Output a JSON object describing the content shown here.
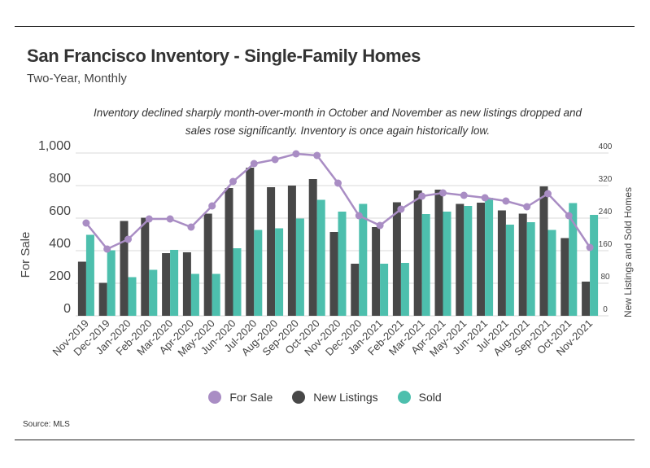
{
  "header": {
    "title": "San Francisco Inventory - Single-Family Homes",
    "subtitle": "Two-Year, Monthly"
  },
  "annotation": "Inventory declined sharply month-over-month in October and November as new listings dropped and sales rose significantly. Inventory is once again historically low.",
  "source": "Source:  MLS",
  "colors": {
    "for_sale": "#a98dc4",
    "new_listings": "#484848",
    "sold": "#4dbfad",
    "grid": "#d9d9d9"
  },
  "chart_data": {
    "type": "bar",
    "categories": [
      "Nov-2019",
      "Dec-2019",
      "Jan-2020",
      "Feb-2020",
      "Mar-2020",
      "Apr-2020",
      "May-2020",
      "Jun-2020",
      "Jul-2020",
      "Aug-2020",
      "Sep-2020",
      "Oct-2020",
      "Nov-2020",
      "Dec-2020",
      "Jan-2021",
      "Feb-2021",
      "Mar-2021",
      "Apr-2021",
      "May-2021",
      "Jun-2021",
      "Jul-2021",
      "Aug-2021",
      "Sep-2021",
      "Oct-2021",
      "Nov-2021"
    ],
    "series": [
      {
        "name": "For Sale",
        "type": "line",
        "axis": "left",
        "values": [
          570,
          410,
          470,
          595,
          595,
          545,
          675,
          825,
          935,
          960,
          995,
          985,
          815,
          615,
          555,
          655,
          735,
          755,
          740,
          725,
          705,
          670,
          750,
          615,
          420
        ]
      },
      {
        "name": "New Listings",
        "type": "bar",
        "axis": "right",
        "values": [
          133,
          81,
          233,
          241,
          154,
          156,
          251,
          314,
          364,
          316,
          320,
          336,
          206,
          128,
          218,
          279,
          308,
          310,
          275,
          278,
          259,
          251,
          318,
          191,
          84
        ]
      },
      {
        "name": "Sold",
        "type": "bar",
        "axis": "right",
        "values": [
          199,
          161,
          95,
          113,
          162,
          103,
          103,
          166,
          211,
          215,
          239,
          285,
          256,
          275,
          128,
          130,
          250,
          256,
          270,
          290,
          224,
          230,
          211,
          277,
          248
        ]
      }
    ],
    "ylabel": "For Sale",
    "ylabel_right": "New Listings and Sold Homes",
    "ylim": [
      0,
      1000
    ],
    "ylim_right": [
      0,
      400
    ],
    "yticks": [
      "0",
      "200",
      "400",
      "600",
      "800",
      "1,000"
    ],
    "yticks_right": [
      "0",
      "80",
      "160",
      "240",
      "320",
      "400"
    ],
    "grid": true,
    "legend": "bottom"
  }
}
